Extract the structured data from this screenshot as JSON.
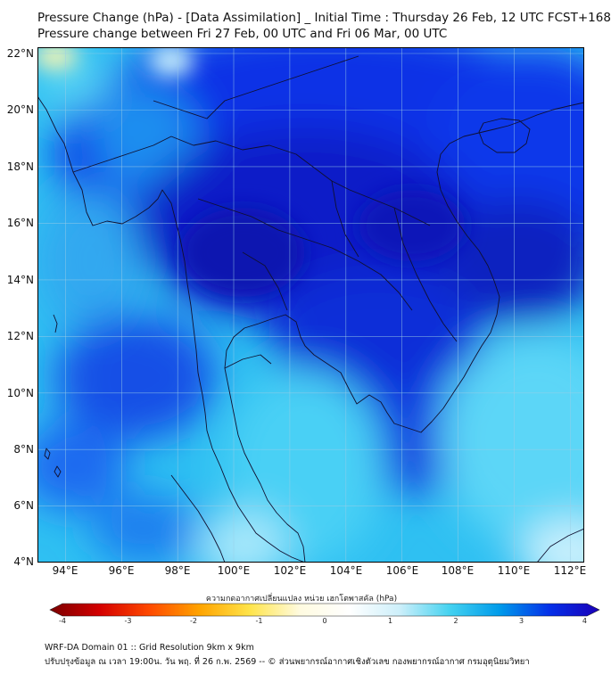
{
  "title_line1": "Pressure Change (hPa) - [Data Assimilation] _ Initial Time : Thursday 26 Feb, 12 UTC FCST+168",
  "title_line2": "Pressure change between Fri 27 Feb, 00 UTC and Fri 06 Mar, 00 UTC",
  "map": {
    "lon_range": [
      93.0,
      112.5
    ],
    "lat_range": [
      4.0,
      22.2
    ],
    "lat_ticks": [
      "22°N",
      "20°N",
      "18°N",
      "16°N",
      "14°N",
      "12°N",
      "10°N",
      "8°N",
      "6°N",
      "4°N"
    ],
    "lon_ticks": [
      "94°E",
      "96°E",
      "98°E",
      "100°E",
      "102°E",
      "104°E",
      "106°E",
      "108°E",
      "110°E",
      "112°E"
    ],
    "grid": true,
    "field_minima_comment_free": true
  },
  "colorbar": {
    "title": "ความกดอากาศเปลี่ยนแปลง หน่วย เฮกโตพาสคัล (hPa)",
    "range": [
      -4,
      4
    ],
    "ticks": [
      "-4",
      "-3",
      "-2",
      "-1",
      "0",
      "1",
      "2",
      "3",
      "4"
    ],
    "colors": [
      "#7a0000",
      "#d40000",
      "#ff4a00",
      "#ffa400",
      "#ffe44a",
      "#fffbe0",
      "#ffffff",
      "#cdeffa",
      "#45d2f0",
      "#009bea",
      "#0530e8",
      "#1a00b8"
    ]
  },
  "footer_line1": "WRF-DA Domain 01 :: Grid Resolution 9km x 9km",
  "footer_line2": "ปรับปรุงข้อมูล ณ เวลา 19:00น. วัน พฤ. ที่ 26 ก.พ. 2569 -- © ส่วนพยากรณ์อากาศเชิงตัวเลข กองพยากรณ์อากาศ กรมอุตุนิยมวิทยา"
}
